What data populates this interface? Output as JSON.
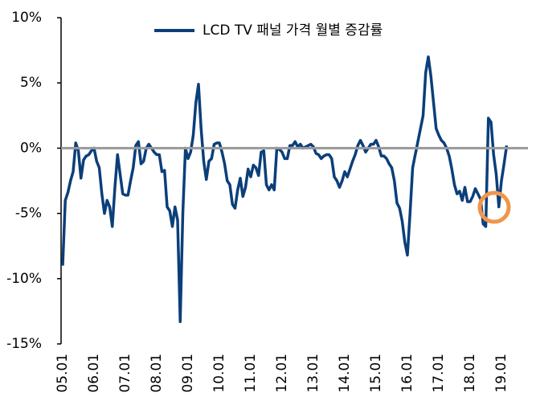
{
  "chart_data": {
    "type": "line",
    "categories": [
      "05.01",
      null,
      null,
      null,
      null,
      null,
      null,
      null,
      null,
      null,
      null,
      null,
      "06.01",
      null,
      null,
      null,
      null,
      null,
      null,
      null,
      null,
      null,
      null,
      null,
      "07.01",
      null,
      null,
      null,
      null,
      null,
      null,
      null,
      null,
      null,
      null,
      null,
      "08.01",
      null,
      null,
      null,
      null,
      null,
      null,
      null,
      null,
      null,
      null,
      null,
      "09.01",
      null,
      null,
      null,
      null,
      null,
      null,
      null,
      null,
      null,
      null,
      null,
      "10.01",
      null,
      null,
      null,
      null,
      null,
      null,
      null,
      null,
      null,
      null,
      null,
      "11.01",
      null,
      null,
      null,
      null,
      null,
      null,
      null,
      null,
      null,
      null,
      null,
      "12.01",
      null,
      null,
      null,
      null,
      null,
      null,
      null,
      null,
      null,
      null,
      null,
      "13.01",
      null,
      null,
      null,
      null,
      null,
      null,
      null,
      null,
      null,
      null,
      null,
      "14.01",
      null,
      null,
      null,
      null,
      null,
      null,
      null,
      null,
      null,
      null,
      null,
      "15.01",
      null,
      null,
      null,
      null,
      null,
      null,
      null,
      null,
      null,
      null,
      null,
      "16.01",
      null,
      null,
      null,
      null,
      null,
      null,
      null,
      null,
      null,
      null,
      null,
      "17.01",
      null,
      null,
      null,
      null,
      null,
      null,
      null,
      null,
      null,
      null,
      null,
      "18.01",
      null,
      null,
      null,
      null,
      null,
      null,
      null,
      null,
      null,
      null,
      null,
      "19.01",
      null,
      null
    ],
    "series": [
      {
        "name": "LCD TV 패널 가격 월별 증감률",
        "color": "#0b3f7a",
        "values": [
          -9.0,
          -4.0,
          -3.4,
          -2.5,
          -1.8,
          0.4,
          -0.2,
          -2.3,
          -0.9,
          -0.6,
          -0.5,
          -0.2,
          0.0,
          -1.0,
          -1.5,
          -3.5,
          -5.0,
          -4.0,
          -4.5,
          -6.0,
          -3.0,
          -0.5,
          -2.0,
          -3.5,
          -3.6,
          -3.6,
          -2.5,
          -1.5,
          0.2,
          0.5,
          -1.2,
          -1.0,
          0.0,
          0.3,
          0.0,
          -0.3,
          -0.5,
          -0.5,
          -1.8,
          -1.7,
          -4.5,
          -4.8,
          -6.0,
          -4.5,
          -5.5,
          -13.3,
          -5.0,
          0.0,
          -0.8,
          -0.3,
          1.0,
          3.5,
          4.9,
          1.5,
          -1.0,
          -2.4,
          -1.0,
          -0.8,
          0.3,
          0.4,
          0.4,
          -0.3,
          -1.2,
          -2.5,
          -2.8,
          -4.3,
          -4.6,
          -3.2,
          -2.3,
          -3.7,
          -3.0,
          -1.6,
          -2.2,
          -1.3,
          -1.5,
          -2.1,
          -0.3,
          -0.2,
          -2.8,
          -3.2,
          -2.8,
          -3.2,
          0.0,
          -0.1,
          -0.3,
          -0.8,
          -0.8,
          0.2,
          0.2,
          0.5,
          0.1,
          0.3,
          0.0,
          0.1,
          0.2,
          0.3,
          0.1,
          -0.4,
          -0.5,
          -0.8,
          -0.6,
          -0.5,
          -0.5,
          -0.8,
          -2.2,
          -2.5,
          -3.0,
          -2.5,
          -1.8,
          -2.2,
          -1.6,
          -1.0,
          -0.5,
          0.2,
          0.6,
          0.2,
          -0.3,
          0.0,
          0.3,
          0.3,
          0.6,
          0.1,
          -0.6,
          -0.6,
          -0.8,
          -1.2,
          -1.5,
          -2.5,
          -4.2,
          -4.6,
          -5.6,
          -7.2,
          -8.2,
          -5.0,
          -1.5,
          -0.5,
          0.5,
          1.5,
          2.5,
          5.8,
          7.0,
          5.5,
          3.5,
          1.5,
          1.0,
          0.6,
          0.4,
          0.0,
          -0.6,
          -1.6,
          -2.8,
          -3.5,
          -3.3,
          -4.0,
          -3.0,
          -4.1,
          -4.1,
          -3.7,
          -3.1,
          -3.5,
          -3.9,
          -5.8,
          -6.0,
          2.3,
          2.0,
          -0.5,
          -2.0,
          -4.5,
          -2.5,
          -1.2,
          0.2
        ]
      }
    ],
    "ylim": [
      -15,
      10
    ],
    "yticks": [
      {
        "value": -15,
        "label": "-15%"
      },
      {
        "value": -10,
        "label": "-10%"
      },
      {
        "value": -5,
        "label": "-5%"
      },
      {
        "value": 0,
        "label": "0%"
      },
      {
        "value": 5,
        "label": "5%"
      },
      {
        "value": 10,
        "label": "10%"
      }
    ],
    "zero_line": true
  }
}
